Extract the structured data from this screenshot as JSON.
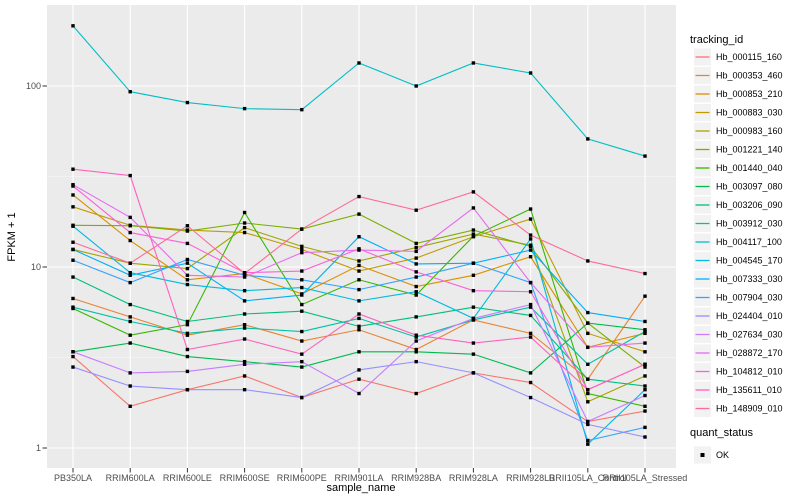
{
  "figure": {
    "background": "#ffffff",
    "panel_color": "#ebebeb",
    "grid_major_color": "#ffffff",
    "grid_minor_color": "#f5f5f5",
    "axis_text_color": "#4d4d4d",
    "point_color": "#000000",
    "point_shape": "square"
  },
  "axes": {
    "x_title": "sample_name",
    "y_title": "FPKM + 1",
    "y_tick_labels": [
      "100",
      "10",
      "1"
    ],
    "y_tick_values": [
      100,
      10,
      1
    ],
    "y_scale": "log10",
    "y_minor_values": [
      31.62,
      3.162
    ]
  },
  "legend": {
    "tracking_title": "tracking_id",
    "quant_title": "quant_status",
    "quant_item_label": "OK",
    "key_fill": "#f2f2f2"
  },
  "chart_data": {
    "type": "line",
    "title": "",
    "xlabel": "sample_name",
    "ylabel": "FPKM + 1",
    "y_scale": "log10",
    "ylim": [
      0.78,
      280
    ],
    "grid": true,
    "legend_position": "right",
    "marker": "black-square",
    "categories": [
      "PB350LA",
      "RRIM600LA",
      "RRIM600LE",
      "RRIM600SE",
      "RRIM600PE",
      "RRIM901LA",
      "RRIM928BA",
      "RRIM928LA",
      "RRIM928LB",
      "RRII105LA_Control",
      "RRII105LA_Stressed"
    ],
    "series": [
      {
        "name": "Hb_000115_160",
        "color": "#F8766D",
        "values": [
          3.2,
          1.7,
          2.1,
          2.5,
          1.9,
          2.4,
          2.0,
          2.6,
          2.3,
          1.4,
          1.6
        ]
      },
      {
        "name": "Hb_000353_460",
        "color": "#EA8331",
        "values": [
          6.7,
          5.3,
          4.2,
          4.8,
          3.9,
          4.5,
          3.5,
          5.1,
          4.3,
          2.4,
          6.9
        ]
      },
      {
        "name": "Hb_000853_210",
        "color": "#D89000",
        "values": [
          25,
          14,
          8.5,
          9.2,
          7.1,
          10.2,
          7.8,
          9.0,
          11.4,
          3.6,
          4.3
        ]
      },
      {
        "name": "Hb_000883_030",
        "color": "#C09B00",
        "values": [
          21.5,
          17,
          16,
          15.5,
          12.5,
          9.5,
          11.2,
          14.7,
          18.4,
          4.3,
          3.4
        ]
      },
      {
        "name": "Hb_000983_160",
        "color": "#A3A500",
        "values": [
          12.5,
          10.5,
          9.8,
          16.5,
          13,
          10.8,
          12.8,
          15.2,
          13.2,
          1.8,
          2.5
        ]
      },
      {
        "name": "Hb_001221_140",
        "color": "#7CAE00",
        "values": [
          17,
          16.9,
          15.8,
          17.5,
          16.2,
          19.6,
          13.5,
          16,
          13,
          4.9,
          2.8
        ]
      },
      {
        "name": "Hb_001440_040",
        "color": "#39B600",
        "values": [
          5.9,
          4.2,
          4.8,
          20,
          6.2,
          8.5,
          7.0,
          14.8,
          20.9,
          2.0,
          1.7
        ]
      },
      {
        "name": "Hb_003097_080",
        "color": "#00BB4E",
        "values": [
          3.4,
          3.8,
          3.2,
          3.0,
          2.8,
          3.4,
          3.4,
          3.3,
          2.6,
          4.9,
          4.5
        ]
      },
      {
        "name": "Hb_003206_090",
        "color": "#00BF7D",
        "values": [
          8.8,
          6.2,
          5.0,
          5.5,
          5.7,
          4.7,
          5.3,
          6.0,
          5.4,
          2.4,
          2.2
        ]
      },
      {
        "name": "Hb_003912_030",
        "color": "#00C1A3",
        "values": [
          6.0,
          5.0,
          4.3,
          4.6,
          4.4,
          5.2,
          4.1,
          5.1,
          6.0,
          2.9,
          4.4
        ]
      },
      {
        "name": "Hb_004117_100",
        "color": "#00BFC4",
        "values": [
          215,
          93,
          81,
          75,
          74,
          134,
          100,
          134,
          118,
          51,
          41
        ]
      },
      {
        "name": "Hb_004545_170",
        "color": "#00BAE0",
        "values": [
          16.8,
          9.3,
          8.0,
          7.4,
          7.7,
          6.5,
          7.3,
          5.2,
          14.3,
          1.05,
          2.1
        ]
      },
      {
        "name": "Hb_007333_030",
        "color": "#00B0F6",
        "values": [
          12.5,
          9.0,
          10.5,
          6.5,
          7.0,
          14.7,
          10.4,
          10.5,
          12.4,
          5.6,
          5.0
        ]
      },
      {
        "name": "Hb_007904_030",
        "color": "#35A2FF",
        "values": [
          10.9,
          8.2,
          11.0,
          9.0,
          8.5,
          7.5,
          8.8,
          10.5,
          8.2,
          1.1,
          1.3
        ]
      },
      {
        "name": "Hb_024404_010",
        "color": "#9590FF",
        "values": [
          2.8,
          2.2,
          2.1,
          2.1,
          1.9,
          2.7,
          3.0,
          2.6,
          1.9,
          1.35,
          1.15
        ]
      },
      {
        "name": "Hb_027634_030",
        "color": "#C77CFF",
        "values": [
          3.4,
          2.6,
          2.65,
          2.9,
          3.0,
          2.0,
          3.9,
          5.2,
          6.2,
          1.4,
          1.95
        ]
      },
      {
        "name": "Hb_028872_170",
        "color": "#E76BF3",
        "values": [
          28.5,
          18.8,
          9.0,
          8.8,
          12.0,
          12.4,
          12.2,
          21.2,
          8.2,
          3.6,
          3.8
        ]
      },
      {
        "name": "Hb_104812_010",
        "color": "#FA62DB",
        "values": [
          28,
          15.5,
          13.5,
          9.3,
          9.5,
          12.6,
          9.4,
          7.4,
          7.3,
          2.1,
          2.9
        ]
      },
      {
        "name": "Hb_135611_010",
        "color": "#FF62BC",
        "values": [
          34.7,
          32,
          3.5,
          4.0,
          3.3,
          5.5,
          4.2,
          3.8,
          4.1,
          2.1,
          2.9
        ]
      },
      {
        "name": "Hb_148909_010",
        "color": "#FF6A98",
        "values": [
          13.7,
          10.5,
          16.9,
          9.2,
          16.2,
          24.5,
          20.6,
          26,
          15,
          10.8,
          9.2
        ]
      }
    ]
  }
}
